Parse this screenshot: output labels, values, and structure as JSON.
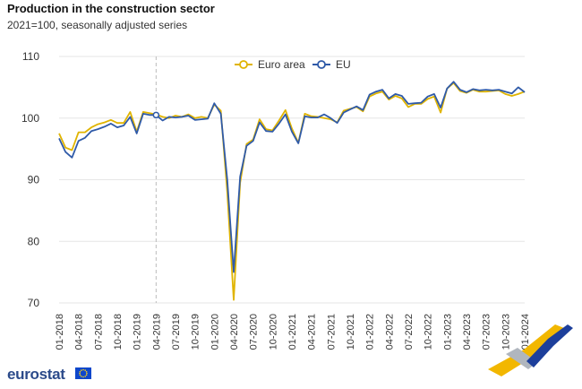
{
  "header": {
    "title": "Production in the construction sector",
    "subtitle": "2021=100, seasonally adjusted series"
  },
  "brand": {
    "name": "eurostat",
    "flag_icon": "eu-flag-icon"
  },
  "colors": {
    "euro_area": "#e0b400",
    "eu": "#2f5aa8",
    "grid": "#e6e6e6",
    "marker_line": "#bbbbbb"
  },
  "chart_data": {
    "type": "line",
    "title": "Production in the construction sector",
    "subtitle": "2021=100, seasonally adjusted series",
    "xlabel": "",
    "ylabel": "",
    "ylim": [
      70,
      110
    ],
    "yticks": [
      70,
      80,
      90,
      100,
      110
    ],
    "grid": "horizontal",
    "legend": "top-center",
    "x": [
      "01-2018",
      "02-2018",
      "03-2018",
      "04-2018",
      "05-2018",
      "06-2018",
      "07-2018",
      "08-2018",
      "09-2018",
      "10-2018",
      "11-2018",
      "12-2018",
      "01-2019",
      "02-2019",
      "03-2019",
      "04-2019",
      "05-2019",
      "06-2019",
      "07-2019",
      "08-2019",
      "09-2019",
      "10-2019",
      "11-2019",
      "12-2019",
      "01-2020",
      "02-2020",
      "03-2020",
      "04-2020",
      "05-2020",
      "06-2020",
      "07-2020",
      "08-2020",
      "09-2020",
      "10-2020",
      "11-2020",
      "12-2020",
      "01-2021",
      "02-2021",
      "03-2021",
      "04-2021",
      "05-2021",
      "06-2021",
      "07-2021",
      "08-2021",
      "09-2021",
      "10-2021",
      "11-2021",
      "12-2021",
      "01-2022",
      "02-2022",
      "03-2022",
      "04-2022",
      "05-2022",
      "06-2022",
      "07-2022",
      "08-2022",
      "09-2022",
      "10-2022",
      "11-2022",
      "12-2022",
      "01-2023",
      "02-2023",
      "03-2023",
      "04-2023",
      "05-2023",
      "06-2023",
      "07-2023",
      "08-2023",
      "09-2023",
      "10-2023",
      "11-2023",
      "12-2023",
      "01-2024"
    ],
    "xtick_labels": [
      "01-2018",
      "04-2018",
      "07-2018",
      "10-2018",
      "01-2019",
      "04-2019",
      "07-2019",
      "10-2019",
      "01-2020",
      "04-2020",
      "07-2020",
      "10-2020",
      "01-2021",
      "04-2021",
      "07-2021",
      "10-2021",
      "01-2022",
      "04-2022",
      "07-2022",
      "10-2022",
      "01-2023",
      "04-2023",
      "07-2023",
      "10-2023",
      "01-2024"
    ],
    "highlight_x": "04-2019",
    "series": [
      {
        "name": "Euro area",
        "color": "#e0b400",
        "values": [
          97.5,
          95.2,
          94.8,
          97.7,
          97.7,
          98.5,
          99.0,
          99.3,
          99.7,
          99.2,
          99.2,
          101.0,
          97.8,
          101.0,
          100.8,
          100.6,
          100.2,
          100.0,
          100.4,
          100.2,
          100.6,
          100.0,
          100.2,
          100.0,
          102.2,
          101.2,
          88.0,
          70.5,
          89.5,
          95.8,
          96.5,
          99.8,
          98.2,
          98.0,
          99.6,
          101.3,
          98.3,
          96.0,
          100.7,
          100.3,
          100.2,
          100.0,
          99.8,
          99.3,
          101.2,
          101.5,
          101.8,
          101.1,
          103.5,
          104.0,
          104.3,
          103.0,
          103.6,
          103.2,
          101.8,
          102.3,
          102.3,
          103.1,
          103.5,
          100.9,
          104.8,
          105.7,
          104.4,
          104.1,
          104.6,
          104.3,
          104.3,
          104.4,
          104.5,
          103.9,
          103.6,
          103.9,
          104.3
        ]
      },
      {
        "name": "EU",
        "color": "#2f5aa8",
        "values": [
          96.7,
          94.5,
          93.6,
          96.3,
          96.8,
          97.9,
          98.2,
          98.6,
          99.1,
          98.5,
          98.8,
          100.2,
          97.5,
          100.7,
          100.5,
          100.5,
          99.6,
          100.2,
          100.1,
          100.2,
          100.4,
          99.7,
          99.8,
          99.9,
          102.4,
          100.7,
          90.0,
          75.0,
          90.5,
          95.5,
          96.3,
          99.3,
          97.9,
          97.8,
          99.1,
          100.6,
          97.8,
          95.9,
          100.3,
          100.1,
          100.1,
          100.6,
          100.0,
          99.2,
          100.9,
          101.4,
          101.9,
          101.3,
          103.8,
          104.3,
          104.6,
          103.2,
          103.9,
          103.6,
          102.3,
          102.4,
          102.5,
          103.5,
          103.9,
          101.7,
          104.8,
          105.9,
          104.6,
          104.2,
          104.7,
          104.5,
          104.6,
          104.5,
          104.6,
          104.3,
          104.0,
          105.0,
          104.2
        ]
      }
    ]
  }
}
